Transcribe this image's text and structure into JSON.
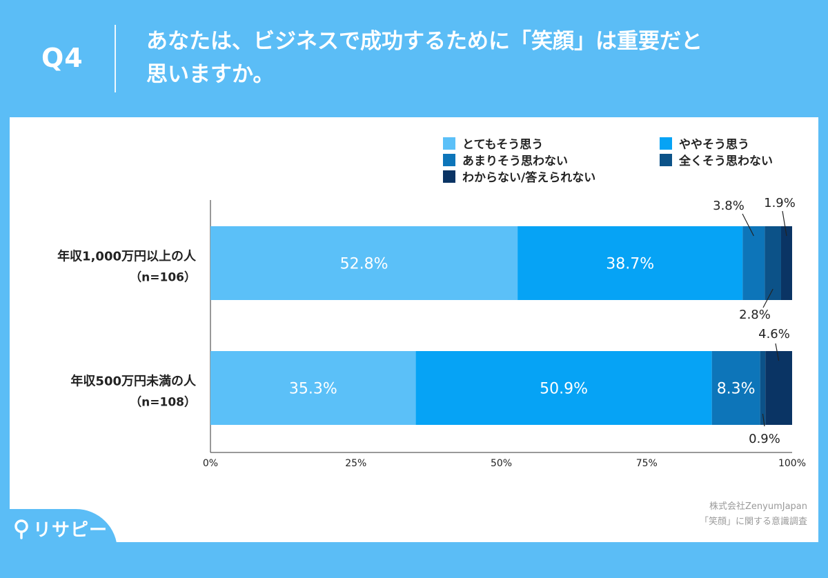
{
  "header": {
    "question_number": "Q4",
    "question_line1": "あなたは、ビジネスで成功するために「笑顔」は重要だと",
    "question_line2": "思いますか。"
  },
  "footer": {
    "source_line1": "株式会社ZenyumJapan",
    "source_line2": "「笑顔」に関する意識調査",
    "brand": "リサピー"
  },
  "colors": {
    "background": "#5bbdf6",
    "axis": "#333333"
  },
  "chart_data": {
    "type": "bar",
    "orientation": "horizontal",
    "stacked": true,
    "categories": [
      {
        "label": "年収1,000万円以上の人",
        "sub": "（n=106）"
      },
      {
        "label": "年収500万円未満の人",
        "sub": "（n=108）"
      }
    ],
    "series": [
      {
        "name": "とてもそう思う",
        "color": "#5bc0f8",
        "values": [
          52.8,
          35.3
        ]
      },
      {
        "name": "ややそう思う",
        "color": "#06a3f5",
        "values": [
          38.7,
          50.9
        ]
      },
      {
        "name": "あまりそう思わない",
        "color": "#0d75b9",
        "values": [
          3.8,
          8.3
        ]
      },
      {
        "name": "全くそう思わない",
        "color": "#0c5288",
        "values": [
          2.8,
          0.9
        ]
      },
      {
        "name": "わからない/答えられない",
        "color": "#0a3464",
        "values": [
          1.9,
          4.6
        ]
      }
    ],
    "xlim": [
      0,
      100
    ],
    "xticks": [
      "0%",
      "25%",
      "50%",
      "75%",
      "100%"
    ],
    "legend_position": "top-right",
    "grid": false
  }
}
